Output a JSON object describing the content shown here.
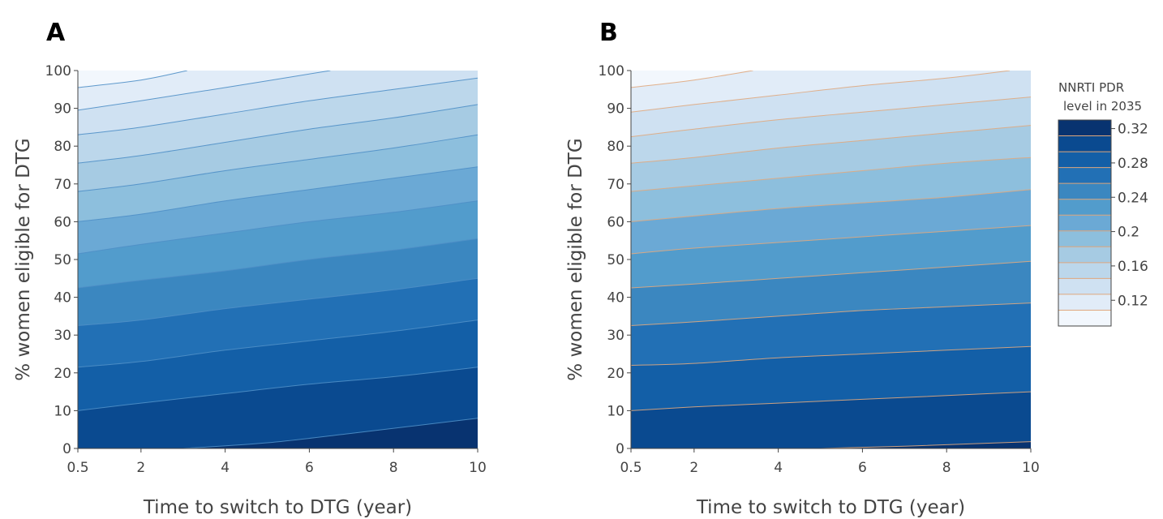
{
  "chart_data": [
    {
      "type": "contour",
      "panel_label": "A",
      "xlabel": "Time to switch to DTG (year)",
      "ylabel": "% women eligible for DTG",
      "xlim": [
        0.5,
        10
      ],
      "ylim": [
        0,
        100
      ],
      "xticks": [
        "0.5",
        "2",
        "4",
        "6",
        "8",
        "10"
      ],
      "yticks": [
        "0",
        "10",
        "20",
        "30",
        "40",
        "50",
        "60",
        "70",
        "80",
        "90",
        "100"
      ],
      "contour_line_color": "#4f8fc7",
      "contours": [
        {
          "level": 0.32,
          "points": [
            [
              3.0,
              0
            ],
            [
              5,
              1.5
            ],
            [
              7,
              4
            ],
            [
              10,
              8
            ]
          ]
        },
        {
          "level": 0.3,
          "points": [
            [
              0.5,
              10
            ],
            [
              2,
              12
            ],
            [
              4,
              14.5
            ],
            [
              6,
              17
            ],
            [
              8,
              19
            ],
            [
              10,
              21.5
            ]
          ]
        },
        {
          "level": 0.28,
          "points": [
            [
              0.5,
              21.5
            ],
            [
              2,
              23
            ],
            [
              4,
              26
            ],
            [
              6,
              28.5
            ],
            [
              8,
              31
            ],
            [
              10,
              34
            ]
          ]
        },
        {
          "level": 0.26,
          "points": [
            [
              0.5,
              32.5
            ],
            [
              2,
              34
            ],
            [
              4,
              37
            ],
            [
              6,
              39.5
            ],
            [
              8,
              42
            ],
            [
              10,
              45
            ]
          ]
        },
        {
          "level": 0.24,
          "points": [
            [
              0.5,
              42.5
            ],
            [
              2,
              44.5
            ],
            [
              4,
              47
            ],
            [
              6,
              50
            ],
            [
              8,
              52.5
            ],
            [
              10,
              55.5
            ]
          ]
        },
        {
          "level": 0.22,
          "points": [
            [
              0.5,
              51.5
            ],
            [
              2,
              54
            ],
            [
              4,
              57
            ],
            [
              6,
              60
            ],
            [
              8,
              62.5
            ],
            [
              10,
              65.5
            ]
          ]
        },
        {
          "level": 0.2,
          "points": [
            [
              0.5,
              60
            ],
            [
              2,
              62
            ],
            [
              4,
              65.5
            ],
            [
              6,
              68.5
            ],
            [
              8,
              71.5
            ],
            [
              10,
              74.5
            ]
          ]
        },
        {
          "level": 0.18,
          "points": [
            [
              0.5,
              68
            ],
            [
              2,
              70
            ],
            [
              4,
              73.5
            ],
            [
              6,
              76.5
            ],
            [
              8,
              79.5
            ],
            [
              10,
              83
            ]
          ]
        },
        {
          "level": 0.16,
          "points": [
            [
              0.5,
              75.5
            ],
            [
              2,
              77.5
            ],
            [
              4,
              81
            ],
            [
              6,
              84.5
            ],
            [
              8,
              87.5
            ],
            [
              10,
              91
            ]
          ]
        },
        {
          "level": 0.14,
          "points": [
            [
              0.5,
              83
            ],
            [
              2,
              85
            ],
            [
              4,
              88.5
            ],
            [
              6,
              92
            ],
            [
              8,
              95
            ],
            [
              10,
              98
            ]
          ]
        },
        {
          "level": 0.12,
          "points": [
            [
              0.5,
              89.5
            ],
            [
              2,
              92
            ],
            [
              4,
              95.5
            ],
            [
              6.5,
              100
            ]
          ]
        },
        {
          "level": 0.1,
          "points": [
            [
              0.5,
              95.5
            ],
            [
              2,
              97.5
            ],
            [
              3.1,
              100
            ]
          ]
        }
      ]
    },
    {
      "type": "contour",
      "panel_label": "B",
      "xlabel": "Time to switch to DTG (year)",
      "ylabel": "% women eligible for DTG",
      "xlim": [
        0.5,
        10
      ],
      "ylim": [
        0,
        100
      ],
      "xticks": [
        "0.5",
        "2",
        "4",
        "6",
        "8",
        "10"
      ],
      "yticks": [
        "0",
        "10",
        "20",
        "30",
        "40",
        "50",
        "60",
        "70",
        "80",
        "90",
        "100"
      ],
      "contour_line_color": "#e0a87e",
      "contours": [
        {
          "level": 0.32,
          "points": [
            [
              5.0,
              0
            ],
            [
              7,
              0.6
            ],
            [
              10,
              1.8
            ]
          ]
        },
        {
          "level": 0.3,
          "points": [
            [
              0.5,
              10
            ],
            [
              2,
              11
            ],
            [
              4,
              12
            ],
            [
              6,
              13
            ],
            [
              8,
              14
            ],
            [
              10,
              15
            ]
          ]
        },
        {
          "level": 0.28,
          "points": [
            [
              0.5,
              22
            ],
            [
              2,
              22.5
            ],
            [
              4,
              24
            ],
            [
              6,
              25
            ],
            [
              8,
              26
            ],
            [
              10,
              27
            ]
          ]
        },
        {
          "level": 0.26,
          "points": [
            [
              0.5,
              32.5
            ],
            [
              2,
              33.5
            ],
            [
              4,
              35
            ],
            [
              6,
              36.5
            ],
            [
              8,
              37.5
            ],
            [
              10,
              38.5
            ]
          ]
        },
        {
          "level": 0.24,
          "points": [
            [
              0.5,
              42.5
            ],
            [
              2,
              43.5
            ],
            [
              4,
              45
            ],
            [
              6,
              46.5
            ],
            [
              8,
              48
            ],
            [
              10,
              49.5
            ]
          ]
        },
        {
          "level": 0.22,
          "points": [
            [
              0.5,
              51.5
            ],
            [
              2,
              53
            ],
            [
              4,
              54.5
            ],
            [
              6,
              56
            ],
            [
              8,
              57.5
            ],
            [
              10,
              59
            ]
          ]
        },
        {
          "level": 0.2,
          "points": [
            [
              0.5,
              60
            ],
            [
              2,
              61.5
            ],
            [
              4,
              63.5
            ],
            [
              6,
              65
            ],
            [
              8,
              66.5
            ],
            [
              10,
              68.5
            ]
          ]
        },
        {
          "level": 0.18,
          "points": [
            [
              0.5,
              68
            ],
            [
              2,
              69.5
            ],
            [
              4,
              71.5
            ],
            [
              6,
              73.5
            ],
            [
              8,
              75.5
            ],
            [
              10,
              77
            ]
          ]
        },
        {
          "level": 0.16,
          "points": [
            [
              0.5,
              75.5
            ],
            [
              2,
              77
            ],
            [
              4,
              79.5
            ],
            [
              6,
              81.5
            ],
            [
              8,
              83.5
            ],
            [
              10,
              85.5
            ]
          ]
        },
        {
          "level": 0.14,
          "points": [
            [
              0.5,
              82.5
            ],
            [
              2,
              84.5
            ],
            [
              4,
              87
            ],
            [
              6,
              89
            ],
            [
              8,
              91
            ],
            [
              10,
              93
            ]
          ]
        },
        {
          "level": 0.12,
          "points": [
            [
              0.5,
              89
            ],
            [
              2,
              91
            ],
            [
              4,
              93.5
            ],
            [
              6,
              96
            ],
            [
              8,
              98
            ],
            [
              9.5,
              100
            ]
          ]
        },
        {
          "level": 0.1,
          "points": [
            [
              0.5,
              95.5
            ],
            [
              2,
              97.5
            ],
            [
              3.4,
              100
            ]
          ]
        }
      ]
    }
  ],
  "colorbar": {
    "title_line1": "NNRTI PDR",
    "title_line2": "level in 2035",
    "ticks": [
      "0.32",
      "0.28",
      "0.24",
      "0.2",
      "0.16",
      "0.12"
    ],
    "tick_levels": [
      0.32,
      0.28,
      0.24,
      0.2,
      0.16,
      0.12
    ],
    "range": [
      0.09,
      0.33
    ],
    "band_colors": [
      "#f2f7fd",
      "#e1ecf8",
      "#cfe1f2",
      "#bcd7eb",
      "#a6cbe3",
      "#8dbfdd",
      "#6ba9d5",
      "#529ccc",
      "#3b87c0",
      "#2270b5",
      "#135fa7",
      "#0a4a90",
      "#083370"
    ],
    "line_color": "#e0a87e"
  }
}
